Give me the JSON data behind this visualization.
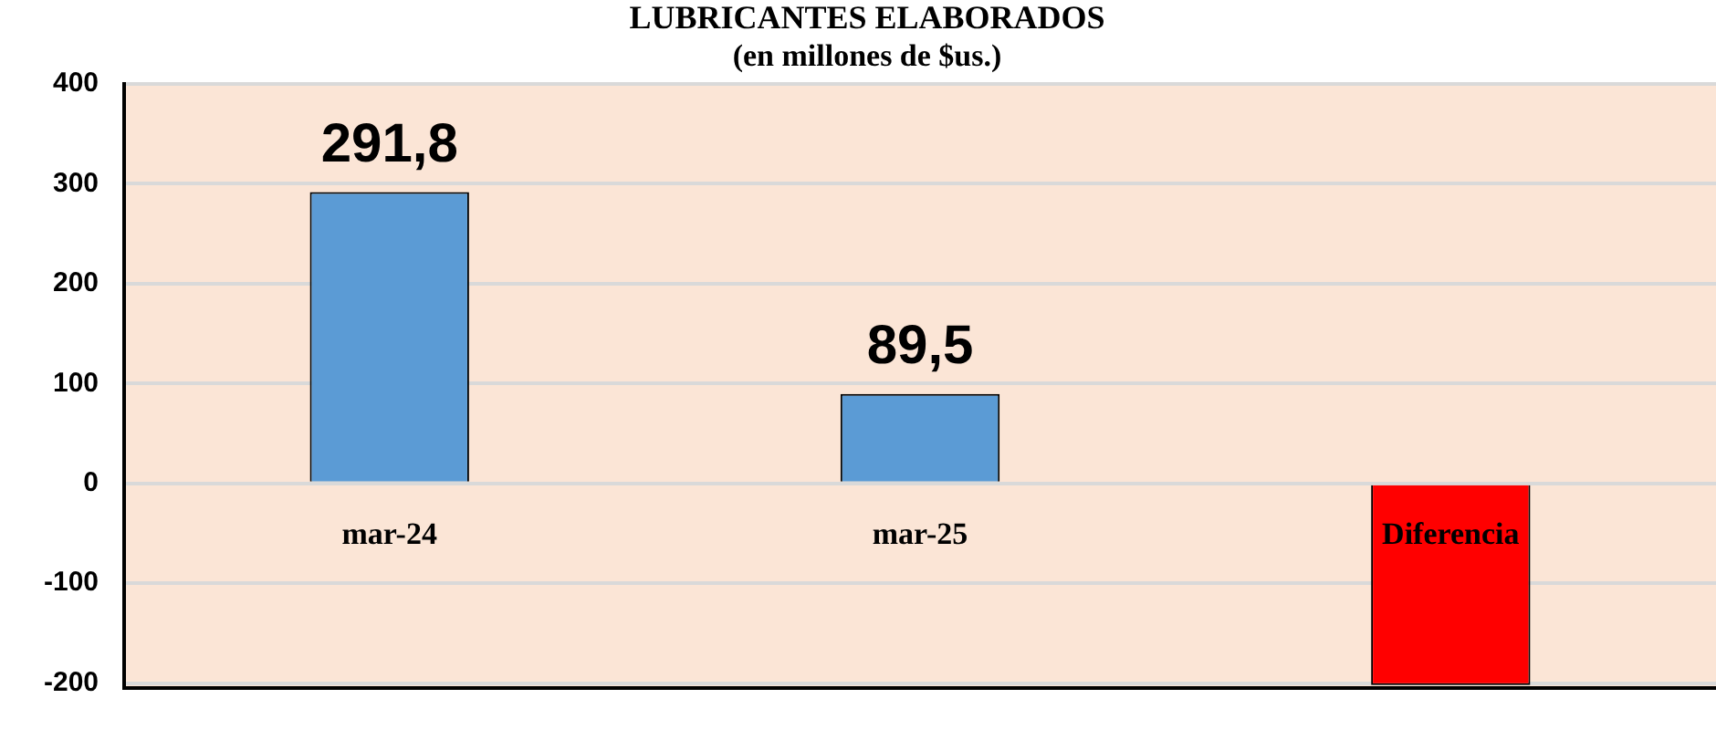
{
  "chart_data": {
    "type": "bar",
    "title": "LUBRICANTES ELABORADOS",
    "subtitle": "(en millones de $us.)",
    "categories": [
      "mar-24",
      "mar-25",
      "Diferencia"
    ],
    "values": [
      291.8,
      89.5,
      -202
    ],
    "colors": [
      "#5b9bd5",
      "#5b9bd5",
      "#ff0000"
    ],
    "value_labels": [
      "291,8",
      "89,5",
      null
    ],
    "ylim": [
      -205,
      400
    ],
    "yticks": [
      -200,
      -100,
      0,
      100,
      200,
      300,
      400
    ],
    "grid": "y",
    "legend": false
  }
}
